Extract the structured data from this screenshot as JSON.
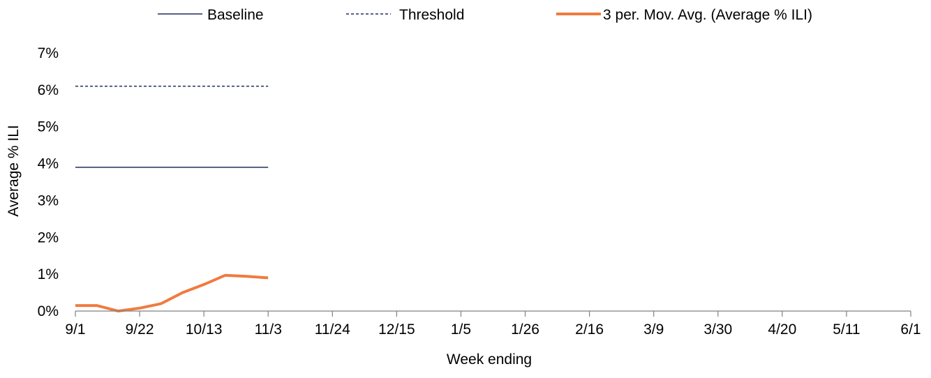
{
  "chart_data": {
    "type": "line",
    "title": "",
    "xlabel": "Week ending",
    "ylabel": "Average % ILI",
    "x_tick_labels": [
      "9/1",
      "9/22",
      "10/13",
      "11/3",
      "11/24",
      "12/15",
      "1/5",
      "1/26",
      "2/16",
      "3/9",
      "3/30",
      "4/20",
      "5/11",
      "6/1"
    ],
    "y_tick_labels": [
      "0%",
      "1%",
      "2%",
      "3%",
      "4%",
      "5%",
      "6%",
      "7%"
    ],
    "ylim": [
      0,
      7
    ],
    "y_unit": "%",
    "grid": false,
    "legend_position": "top",
    "x": [
      "9/1",
      "9/8",
      "9/15",
      "9/22",
      "9/29",
      "10/6",
      "10/13",
      "10/20",
      "10/27",
      "11/3"
    ],
    "series": [
      {
        "name": "Baseline",
        "style": "solid",
        "color": "#1f2d5a",
        "values": [
          3.9,
          3.9,
          3.9,
          3.9,
          3.9,
          3.9,
          3.9,
          3.9,
          3.9,
          3.9
        ]
      },
      {
        "name": "Threshold",
        "style": "dashed",
        "color": "#1f2d5a",
        "values": [
          6.1,
          6.1,
          6.1,
          6.1,
          6.1,
          6.1,
          6.1,
          6.1,
          6.1,
          6.1
        ]
      },
      {
        "name": "3 per. Mov. Avg. (Average % ILI)",
        "style": "solid-thick",
        "color": "#f07b3f",
        "values": [
          0.15,
          0.15,
          0.0,
          0.08,
          0.2,
          0.5,
          0.72,
          0.97,
          0.94,
          0.9
        ]
      }
    ]
  }
}
